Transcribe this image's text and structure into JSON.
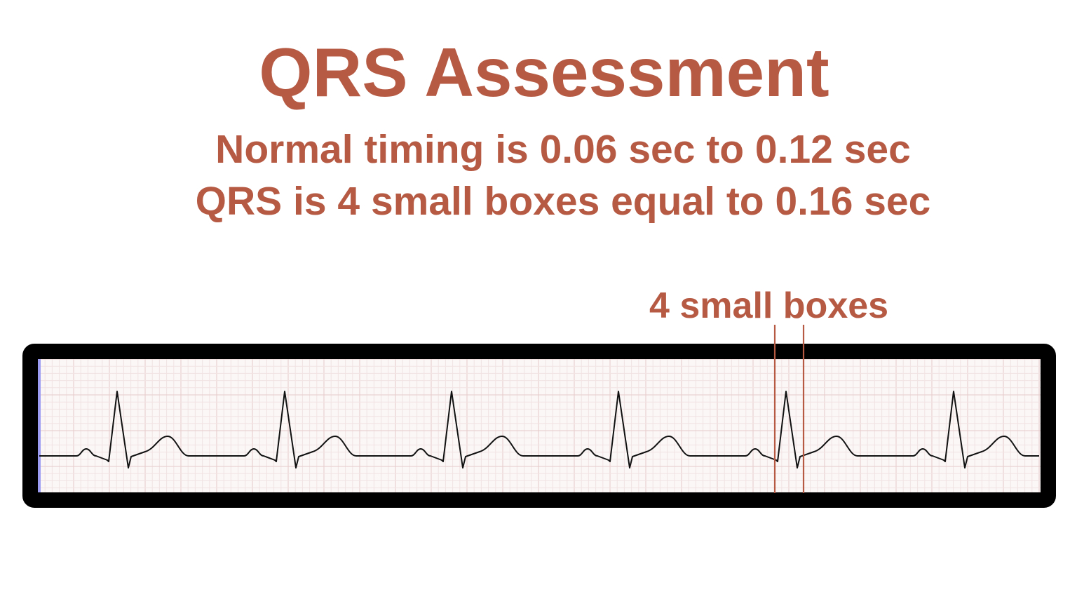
{
  "title": "QRS Assessment",
  "subtitle_lines": [
    "Normal timing is 0.06 sec to 0.12 sec",
    "QRS is 4 small boxes equal to 0.16 sec"
  ],
  "marker_label": "4 small boxes",
  "marker_small_boxes": 4,
  "ecg_beat_count": 6,
  "colors": {
    "accent": "#b65a44",
    "frame": "#000000",
    "grid_minor": "#f2e3e3",
    "grid_major": "#e6caca",
    "paper": "#fbf7f7",
    "trace": "#111111",
    "left_edge": "#9c9cf2"
  }
}
